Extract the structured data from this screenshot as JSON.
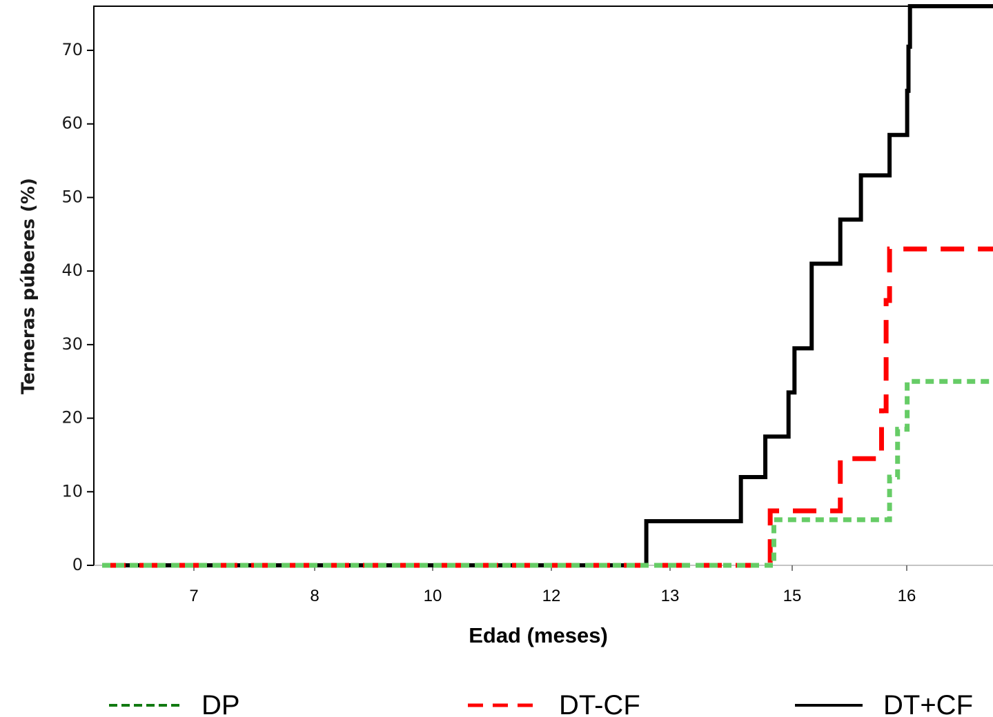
{
  "chart_data": {
    "type": "line",
    "xlabel": "Edad (meses)",
    "ylabel": "Terneras púberes (%)",
    "x_tick_labels": [
      "7",
      "8",
      "10",
      "12",
      "13",
      "15",
      "16"
    ],
    "y_ticks": [
      0,
      10,
      20,
      30,
      40,
      50,
      60,
      70
    ],
    "ylim": [
      0,
      76
    ],
    "xlim_positions": [
      6.2,
      17.0
    ],
    "x_tick_positions": [
      7.0,
      8.0,
      9.0,
      10.0,
      11.0,
      12.0,
      13.0
    ],
    "x_scale": "categorical-ordinal",
    "grid": false,
    "legend_position": "bottom",
    "series": [
      {
        "name": "DP",
        "color": "#66cc66",
        "style": "dotted",
        "steps": [
          [
            6.2,
            0
          ],
          [
            11.85,
            6.2
          ],
          [
            12.85,
            12
          ],
          [
            12.92,
            18.5
          ],
          [
            13.02,
            25
          ]
        ]
      },
      {
        "name": "DT-CF",
        "color": "#ff0000",
        "style": "dashed",
        "steps": [
          [
            6.2,
            0
          ],
          [
            11.82,
            7.4
          ],
          [
            12.42,
            14.5
          ],
          [
            12.78,
            21
          ],
          [
            12.82,
            36
          ],
          [
            12.85,
            43
          ]
        ]
      },
      {
        "name": "DT+CF",
        "color": "#000000",
        "style": "solid",
        "steps": [
          [
            6.2,
            0
          ],
          [
            10.8,
            6
          ],
          [
            11.58,
            12
          ],
          [
            11.78,
            17.5
          ],
          [
            11.97,
            23.5
          ],
          [
            12.02,
            29.5
          ],
          [
            12.17,
            41
          ],
          [
            12.42,
            47
          ],
          [
            12.6,
            53
          ],
          [
            12.85,
            58.5
          ],
          [
            13.02,
            64.5
          ],
          [
            13.08,
            70.5
          ],
          [
            13.15,
            76
          ]
        ]
      }
    ]
  },
  "legend": {
    "items": [
      {
        "label": "DP",
        "color": "#117a11",
        "style": "dotted"
      },
      {
        "label": "DT-CF",
        "color": "#ff0000",
        "style": "dashed"
      },
      {
        "label": "DT+CF",
        "color": "#000000",
        "style": "solid"
      }
    ]
  }
}
